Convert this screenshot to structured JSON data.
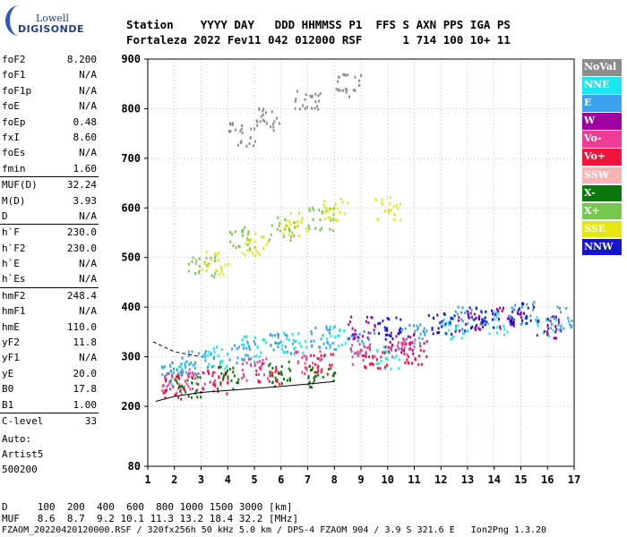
{
  "header": {
    "line1": "Station    YYYY DAY   DDD HHMMSS P1  FFS S AXN PPS IGA PS",
    "line2": "Fortaleza 2022 Fev11 042 012000 RSF      1 714 100 10+ 11"
  },
  "logo": {
    "line1": "Lowell",
    "line2": "DIGISONDE"
  },
  "params": [
    {
      "k": "foF2",
      "v": "8.200"
    },
    {
      "k": "foF1",
      "v": "N/A"
    },
    {
      "k": "foF1p",
      "v": "N/A"
    },
    {
      "k": "foE",
      "v": "N/A"
    },
    {
      "k": "foEp",
      "v": "0.48"
    },
    {
      "k": "fxI",
      "v": "8.60"
    },
    {
      "k": "foEs",
      "v": "N/A"
    },
    {
      "k": "fmin",
      "v": "1.60"
    },
    {
      "k": "MUF(D)",
      "v": "32.24"
    },
    {
      "k": "M(D)",
      "v": "3.93"
    },
    {
      "k": "D",
      "v": "N/A"
    },
    {
      "k": "h`F",
      "v": "230.0"
    },
    {
      "k": "h`F2",
      "v": "230.0"
    },
    {
      "k": "h`E",
      "v": "N/A"
    },
    {
      "k": "h`Es",
      "v": "N/A"
    },
    {
      "k": "hmF2",
      "v": "248.4"
    },
    {
      "k": "hmF1",
      "v": "N/A"
    },
    {
      "k": "hmE",
      "v": "110.0"
    },
    {
      "k": "yF2",
      "v": "11.8"
    },
    {
      "k": "yF1",
      "v": "N/A"
    },
    {
      "k": "yE",
      "v": "20.0"
    },
    {
      "k": "B0",
      "v": "17.8"
    },
    {
      "k": "B1",
      "v": "1.00"
    },
    {
      "k": "C-level",
      "v": "33"
    }
  ],
  "auto": {
    "line1": "Auto:",
    "line2": "Artist5",
    "line3": "500200"
  },
  "footer": {
    "d_row": "D     100  200  400  600  800 1000 1500 3000 [km]",
    "muf_row": "MUF   8.6  8.7  9.2 10.1 11.3 13.2 18.4 32.2 [MHz]",
    "file_row": "FZAOM_20220420120000.RSF / 320fx256h 50 kHz 5.0 km / DPS-4 FZAOM 904 / 3.9 S 321.6 E   Ion2Png 1.3.20"
  },
  "legend": [
    {
      "label": "NoVal",
      "color": "#8c8c8c"
    },
    {
      "label": "NNE",
      "color": "#19e6f0"
    },
    {
      "label": "E",
      "color": "#3aa0f0"
    },
    {
      "label": "W",
      "color": "#a000a0"
    },
    {
      "label": "Vo-",
      "color": "#f03c96"
    },
    {
      "label": "Vo+",
      "color": "#f0143c"
    },
    {
      "label": "SSW",
      "color": "#f8b4b4"
    },
    {
      "label": "X-",
      "color": "#0a780a"
    },
    {
      "label": "X+",
      "color": "#78c850"
    },
    {
      "label": "SSE",
      "color": "#e6e614"
    },
    {
      "label": "NNW",
      "color": "#1414d2"
    }
  ],
  "chart_data": {
    "type": "scatter",
    "x_ticks": [
      "1",
      "2",
      "3",
      "4",
      "5",
      "6",
      "7",
      "8",
      "9",
      "10",
      "11",
      "12",
      "13",
      "14",
      "15",
      "16",
      "17"
    ],
    "y_ticks": [
      "80",
      "200",
      "300",
      "400",
      "500",
      "600",
      "700",
      "800",
      "900"
    ],
    "xlim": [
      1,
      17
    ],
    "ylim_top": 900,
    "grid": true,
    "legend_position": "right",
    "series": [
      {
        "name": "NNE",
        "values": [
          [
            2.2,
            270
          ],
          [
            3.5,
            300
          ],
          [
            5,
            320
          ],
          [
            6.5,
            330
          ],
          [
            8,
            340
          ],
          [
            10,
            300
          ],
          [
            12.5,
            360
          ],
          [
            14,
            370
          ],
          [
            16,
            365
          ]
        ]
      },
      {
        "name": "E",
        "values": [
          [
            2,
            280
          ],
          [
            3,
            290
          ],
          [
            4.5,
            310
          ],
          [
            6,
            330
          ],
          [
            7.5,
            340
          ],
          [
            9,
            330
          ],
          [
            11,
            350
          ],
          [
            13,
            380
          ],
          [
            15,
            390
          ],
          [
            16.5,
            380
          ]
        ]
      },
      {
        "name": "W",
        "values": [
          [
            9,
            360
          ],
          [
            10.5,
            330
          ],
          [
            13,
            370
          ],
          [
            14.5,
            380
          ],
          [
            16,
            360
          ]
        ]
      },
      {
        "name": "Vo-",
        "values": [
          [
            2,
            250
          ],
          [
            3,
            255
          ],
          [
            5,
            275
          ],
          [
            7,
            290
          ],
          [
            9,
            310
          ],
          [
            10.5,
            320
          ]
        ]
      },
      {
        "name": "Vo+",
        "values": [
          [
            2,
            240
          ],
          [
            3.5,
            250
          ],
          [
            5.5,
            265
          ],
          [
            7.5,
            285
          ],
          [
            9.5,
            300
          ],
          [
            11,
            310
          ]
        ]
      },
      {
        "name": "X-",
        "values": [
          [
            2.5,
            240
          ],
          [
            4,
            260
          ],
          [
            6,
            270
          ],
          [
            7.5,
            260
          ]
        ]
      },
      {
        "name": "X+",
        "values": [
          [
            3,
            480
          ],
          [
            4.5,
            540
          ],
          [
            6,
            560
          ],
          [
            7.5,
            580
          ]
        ]
      },
      {
        "name": "SSE",
        "values": [
          [
            3.5,
            490
          ],
          [
            5,
            530
          ],
          [
            6.5,
            570
          ],
          [
            8,
            600
          ],
          [
            10,
            600
          ]
        ]
      },
      {
        "name": "NNW",
        "values": [
          [
            10,
            360
          ],
          [
            12,
            370
          ],
          [
            13.5,
            380
          ],
          [
            15,
            390
          ]
        ]
      },
      {
        "name": "NoVal",
        "values": [
          [
            4.5,
            750
          ],
          [
            5.5,
            780
          ],
          [
            7,
            820
          ],
          [
            8.5,
            850
          ]
        ]
      }
    ],
    "f2_trace": [
      [
        1.3,
        210
      ],
      [
        2,
        220
      ],
      [
        3,
        228
      ],
      [
        4,
        232
      ],
      [
        5,
        236
      ],
      [
        6,
        240
      ],
      [
        7,
        245
      ],
      [
        8,
        250
      ]
    ],
    "f2_dashed": [
      [
        1.2,
        330
      ],
      [
        2,
        310
      ],
      [
        3,
        300
      ]
    ]
  }
}
